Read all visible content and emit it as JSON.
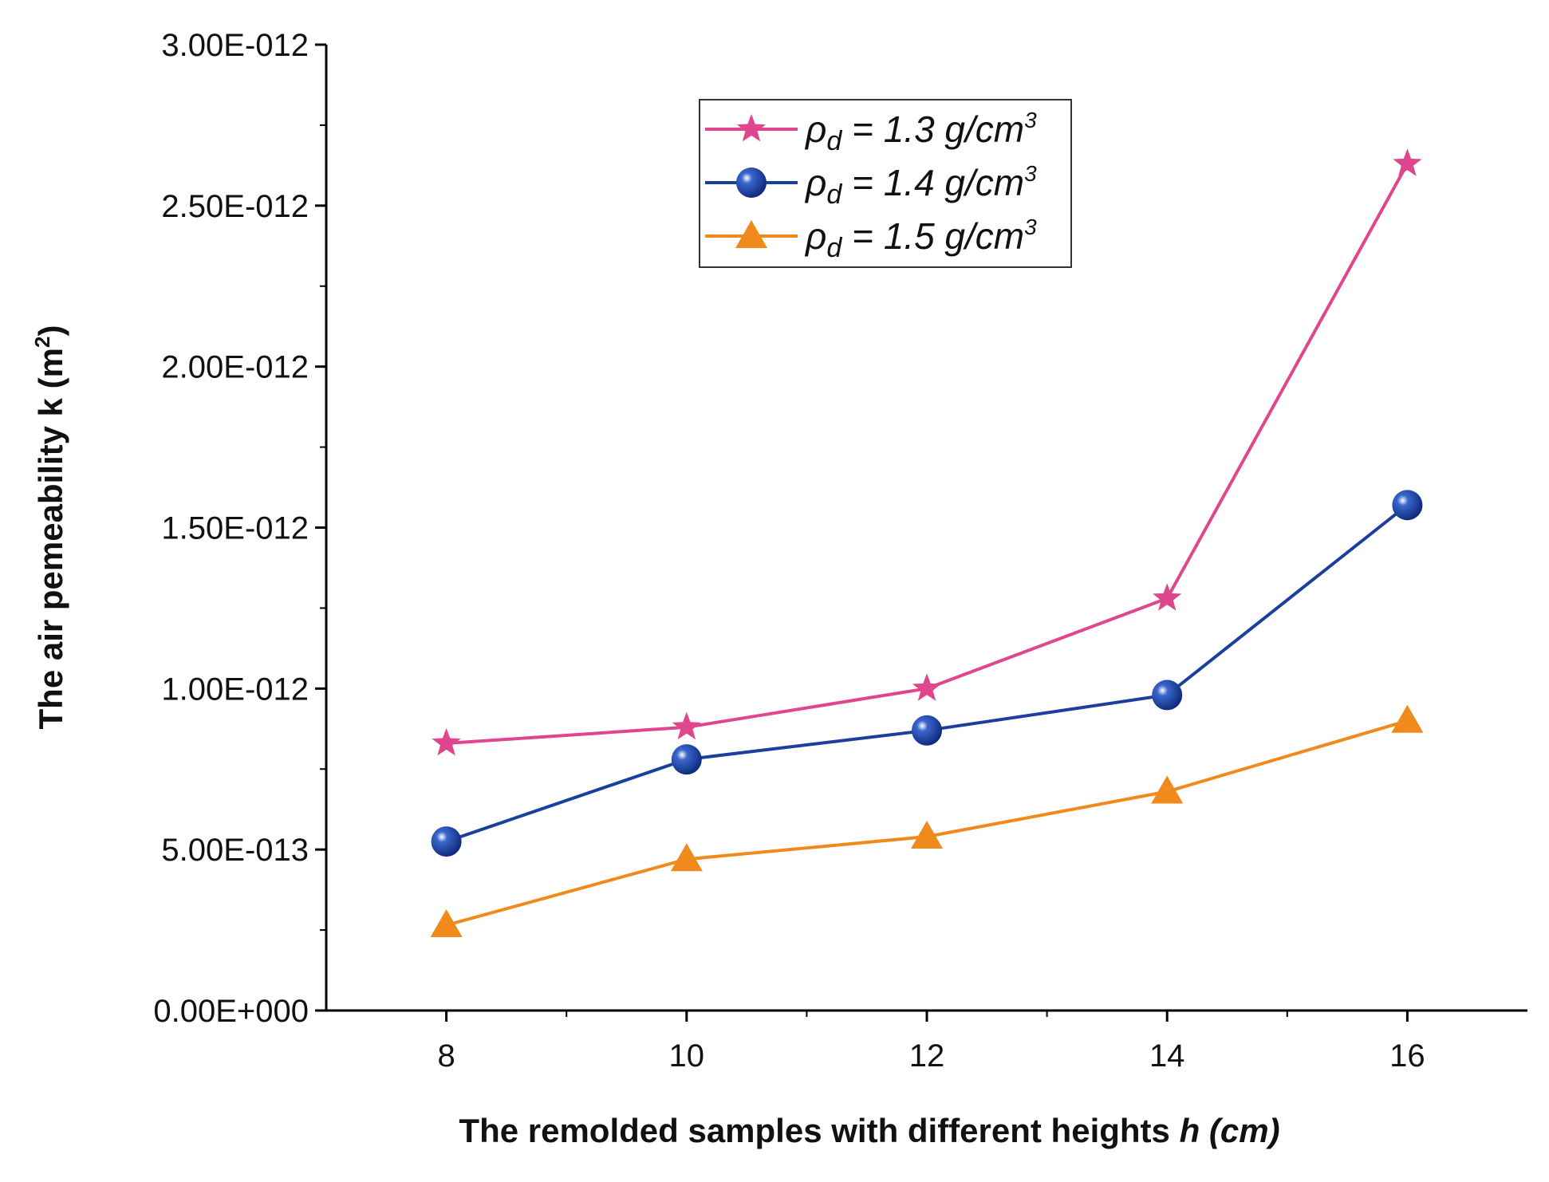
{
  "chart_data": {
    "type": "line",
    "title": "",
    "xlabel": "The remolded samples with different heights",
    "xlabel_var": "h (cm)",
    "ylabel": "The air pemeability k (m",
    "ylabel_sup": "2",
    "ylabel_end": ")",
    "xlim": [
      7,
      17
    ],
    "ylim": [
      0,
      3e-12
    ],
    "x": [
      8,
      10,
      12,
      14,
      16
    ],
    "x_ticks": [
      8,
      10,
      12,
      14,
      16
    ],
    "x_tick_labels": [
      "8",
      "10",
      "12",
      "14",
      "16"
    ],
    "y_ticks": [
      0,
      5e-13,
      1e-12,
      1.5e-12,
      2e-12,
      2.5e-12,
      3e-12
    ],
    "y_tick_labels": [
      "0.00E+000",
      "5.00E-013",
      "1.00E-012",
      "1.50E-012",
      "2.00E-012",
      "2.50E-012",
      "3.00E-012"
    ],
    "grid": false,
    "legend_position": "top-center",
    "series": [
      {
        "name": "ρd = 1.3 g/cm3",
        "label_sym": "ρ",
        "label_sub": "d",
        "label_rest": " = 1.3 g/cm",
        "label_sup": "3",
        "marker": "star",
        "color": "#e0468e",
        "values": [
          8.3e-13,
          8.8e-13,
          1e-12,
          1.28e-12,
          2.63e-12
        ]
      },
      {
        "name": "ρd = 1.4 g/cm3",
        "label_sym": "ρ",
        "label_sub": "d",
        "label_rest": " = 1.4 g/cm",
        "label_sup": "3",
        "marker": "sphere",
        "color": "#1a3f9c",
        "values": [
          5.25e-13,
          7.8e-13,
          8.7e-13,
          9.8e-13,
          1.57e-12
        ]
      },
      {
        "name": "ρd = 1.5 g/cm3",
        "label_sym": "ρ",
        "label_sub": "d",
        "label_rest": " = 1.5 g/cm",
        "label_sup": "3",
        "marker": "triangle",
        "color": "#f08a1c",
        "values": [
          2.65e-13,
          4.7e-13,
          5.4e-13,
          6.8e-13,
          9e-13
        ]
      }
    ]
  }
}
